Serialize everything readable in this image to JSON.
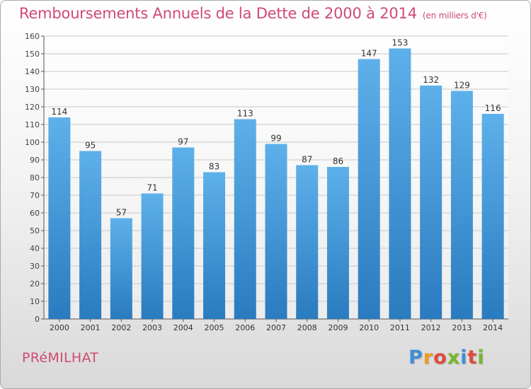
{
  "header": {
    "title": "Remboursements Annuels de la Dette de 2000 à 2014",
    "unit": "(en milliers d'€)"
  },
  "footer": {
    "town": "PRéMILHAT",
    "logo_text": "Proxiti"
  },
  "colors": {
    "bar_top": "#5eb0ea",
    "bar_bottom": "#2a7bbf",
    "title": "#d04a72",
    "grid": "#c8c8c8"
  },
  "chart_data": {
    "type": "bar",
    "title": "Remboursements Annuels de la Dette de 2000 à 2014",
    "subtitle": "(en milliers d'€)",
    "categories": [
      "2000",
      "2001",
      "2002",
      "2003",
      "2004",
      "2005",
      "2006",
      "2007",
      "2008",
      "2009",
      "2010",
      "2011",
      "2012",
      "2013",
      "2014"
    ],
    "values": [
      114,
      95,
      57,
      71,
      97,
      83,
      113,
      99,
      87,
      86,
      147,
      153,
      132,
      129,
      116
    ],
    "ylim": [
      0,
      160
    ],
    "ytick_step": 10,
    "grid": true,
    "data_labels": true
  }
}
